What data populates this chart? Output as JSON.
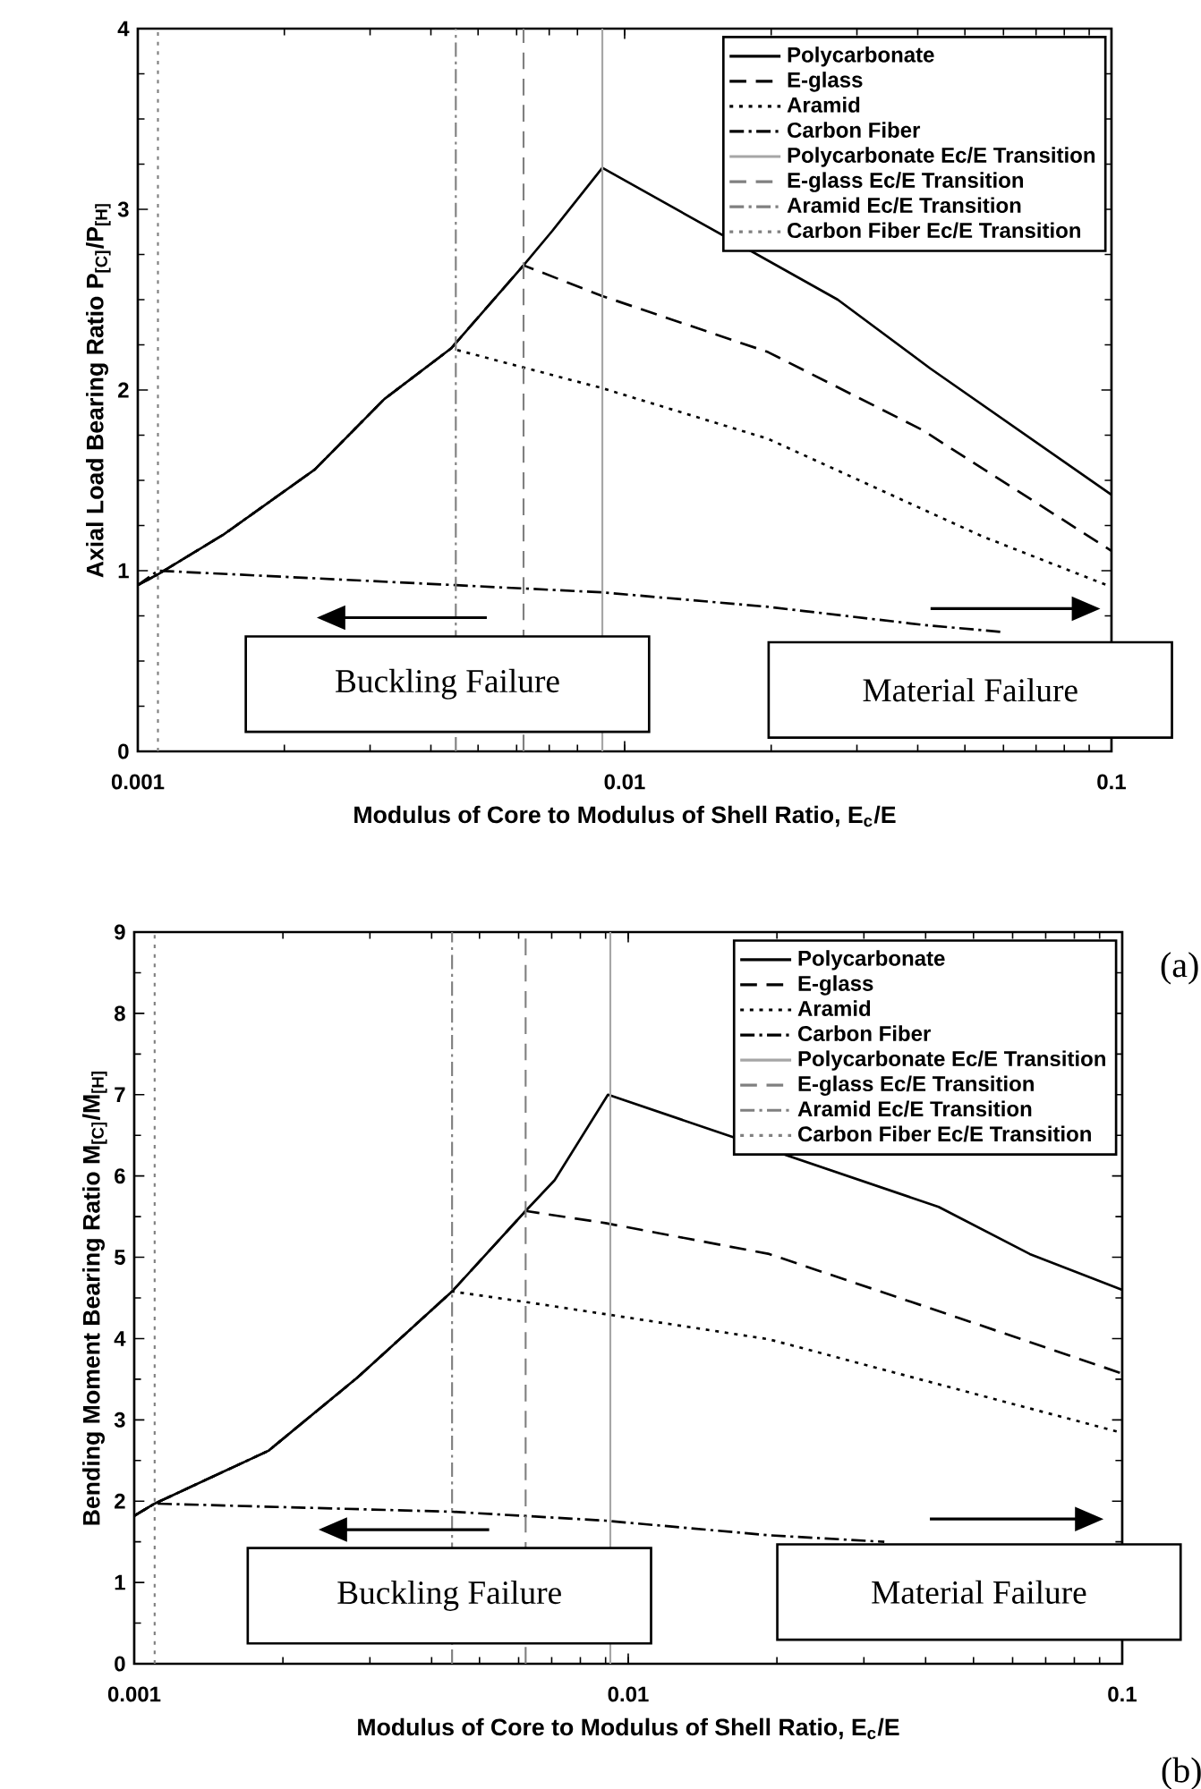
{
  "chart_data": [
    {
      "type": "line",
      "log": "x",
      "xlabel": "Modulus of Core to Modulus of Shell Ratio, E$_{c}$/E",
      "ylabel": "Axial Load Bearing Ratio P$_{[C]}$/P$_{[H]}$",
      "xlim": [
        0.001,
        0.1
      ],
      "ylim": [
        0,
        4
      ],
      "xticks": [
        0.001,
        0.01,
        0.1
      ],
      "yticks": [
        0,
        1,
        2,
        3,
        4
      ],
      "legend": "top right",
      "grid": false,
      "series": [
        {
          "name": "Polycarbonate",
          "color": "#000000",
          "line_style": "solid",
          "x": [
            0.001,
            0.0011,
            0.0015,
            0.00231,
            0.00321,
            0.0044,
            0.0062,
            0.0071,
            0.009,
            0.0274,
            0.0424,
            0.1
          ],
          "values": [
            0.92,
            0.98,
            1.2,
            1.56,
            1.95,
            2.23,
            2.69,
            2.88,
            3.23,
            2.5,
            2.12,
            1.42
          ]
        },
        {
          "name": "E-glass",
          "color": "#000000",
          "line_style": "dashed",
          "x": [
            0.001,
            0.0011,
            0.0015,
            0.00231,
            0.00321,
            0.0044,
            0.0062,
            0.009,
            0.0197,
            0.0408,
            0.1
          ],
          "values": [
            0.92,
            0.98,
            1.2,
            1.56,
            1.95,
            2.23,
            2.69,
            2.52,
            2.21,
            1.78,
            1.11
          ]
        },
        {
          "name": "Aramid",
          "color": "#000000",
          "line_style": "dotted",
          "x": [
            0.001,
            0.0011,
            0.0015,
            0.00231,
            0.00321,
            0.0044,
            0.009,
            0.0197,
            0.0543,
            0.1
          ],
          "values": [
            0.92,
            0.98,
            1.2,
            1.56,
            1.95,
            2.23,
            2.01,
            1.73,
            1.19,
            0.91
          ]
        },
        {
          "name": "Carbon Fiber",
          "color": "#000000",
          "line_style": "dashdot",
          "x": [
            0.001,
            0.0011,
            0.0045,
            0.009,
            0.0197,
            0.041,
            0.06
          ],
          "values": [
            0.92,
            1.0,
            0.92,
            0.88,
            0.8,
            0.7,
            0.66
          ]
        },
        {
          "name": "Polycarbonate Ec/E Transition",
          "color": "#a6a6a6",
          "line_style": "solid",
          "x": [
            0.009,
            0.009
          ],
          "values": [
            0,
            4
          ]
        },
        {
          "name": "E-glass Ec/E Transition",
          "color": "#808080",
          "line_style": "dashed",
          "x": [
            0.0062,
            0.0062
          ],
          "values": [
            0,
            4
          ]
        },
        {
          "name": "Aramid Ec/E Transition",
          "color": "#808080",
          "line_style": "dashdot",
          "x": [
            0.0045,
            0.0045
          ],
          "values": [
            0,
            4
          ]
        },
        {
          "name": "Carbon Fiber Ec/E Transition",
          "color": "#808080",
          "line_style": "dotted",
          "x": [
            0.0011,
            0.0011
          ],
          "values": [
            0,
            4
          ]
        }
      ],
      "annotations": [
        "Buckling Failure",
        "Material Failure",
        "(a)"
      ]
    },
    {
      "type": "line",
      "log": "x",
      "xlabel": "Modulus of Core to Modulus of Shell Ratio, E$_{c}$/E",
      "ylabel": "Bending Moment Bearing Ratio M$_{[C]}$/M$_{[H]}$",
      "xlim": [
        0.001,
        0.1
      ],
      "ylim": [
        0,
        9
      ],
      "xticks": [
        0.001,
        0.01,
        0.1
      ],
      "yticks": [
        0,
        1,
        2,
        3,
        4,
        5,
        6,
        7,
        8,
        9
      ],
      "legend": "top right",
      "grid": false,
      "series": [
        {
          "name": "Polycarbonate",
          "color": "#000000",
          "line_style": "solid",
          "x": [
            0.001,
            0.0011,
            0.00187,
            0.00283,
            0.0044,
            0.0062,
            0.0071,
            0.0091,
            0.0425,
            0.065,
            0.1
          ],
          "values": [
            1.82,
            1.97,
            2.62,
            3.52,
            4.58,
            5.57,
            5.95,
            7.0,
            5.62,
            5.04,
            4.6
          ]
        },
        {
          "name": "E-glass",
          "color": "#000000",
          "line_style": "dashed",
          "x": [
            0.001,
            0.0011,
            0.00187,
            0.00283,
            0.0044,
            0.0062,
            0.009,
            0.0193,
            0.0469,
            0.1
          ],
          "values": [
            1.82,
            1.97,
            2.62,
            3.52,
            4.58,
            5.57,
            5.42,
            5.04,
            4.25,
            3.57
          ]
        },
        {
          "name": "Aramid",
          "color": "#000000",
          "line_style": "dotted",
          "x": [
            0.001,
            0.0011,
            0.00187,
            0.00283,
            0.0044,
            0.0062,
            0.009,
            0.0193,
            0.0564,
            0.1
          ],
          "values": [
            1.82,
            1.97,
            2.62,
            3.52,
            4.58,
            4.45,
            4.3,
            3.99,
            3.24,
            2.84
          ]
        },
        {
          "name": "Carbon Fiber",
          "color": "#000000",
          "line_style": "dashdot",
          "x": [
            0.001,
            0.0011,
            0.0044,
            0.009,
            0.0193,
            0.033
          ],
          "values": [
            1.82,
            1.97,
            1.87,
            1.76,
            1.58,
            1.5
          ]
        },
        {
          "name": "Polycarbonate Ec/E Transition",
          "color": "#a6a6a6",
          "line_style": "solid",
          "x": [
            0.0092,
            0.0092
          ],
          "values": [
            0,
            9
          ]
        },
        {
          "name": "E-glass Ec/E Transition",
          "color": "#808080",
          "line_style": "dashed",
          "x": [
            0.0062,
            0.0062
          ],
          "values": [
            0,
            9
          ]
        },
        {
          "name": "Aramid Ec/E Transition",
          "color": "#808080",
          "line_style": "dashdot",
          "x": [
            0.0044,
            0.0044
          ],
          "values": [
            0,
            9
          ]
        },
        {
          "name": "Carbon Fiber Ec/E Transition",
          "color": "#808080",
          "line_style": "dotted",
          "x": [
            0.0011,
            0.0011
          ],
          "values": [
            0,
            9
          ]
        }
      ],
      "annotations": [
        "Buckling Failure",
        "Material Failure",
        "(b)"
      ]
    }
  ]
}
